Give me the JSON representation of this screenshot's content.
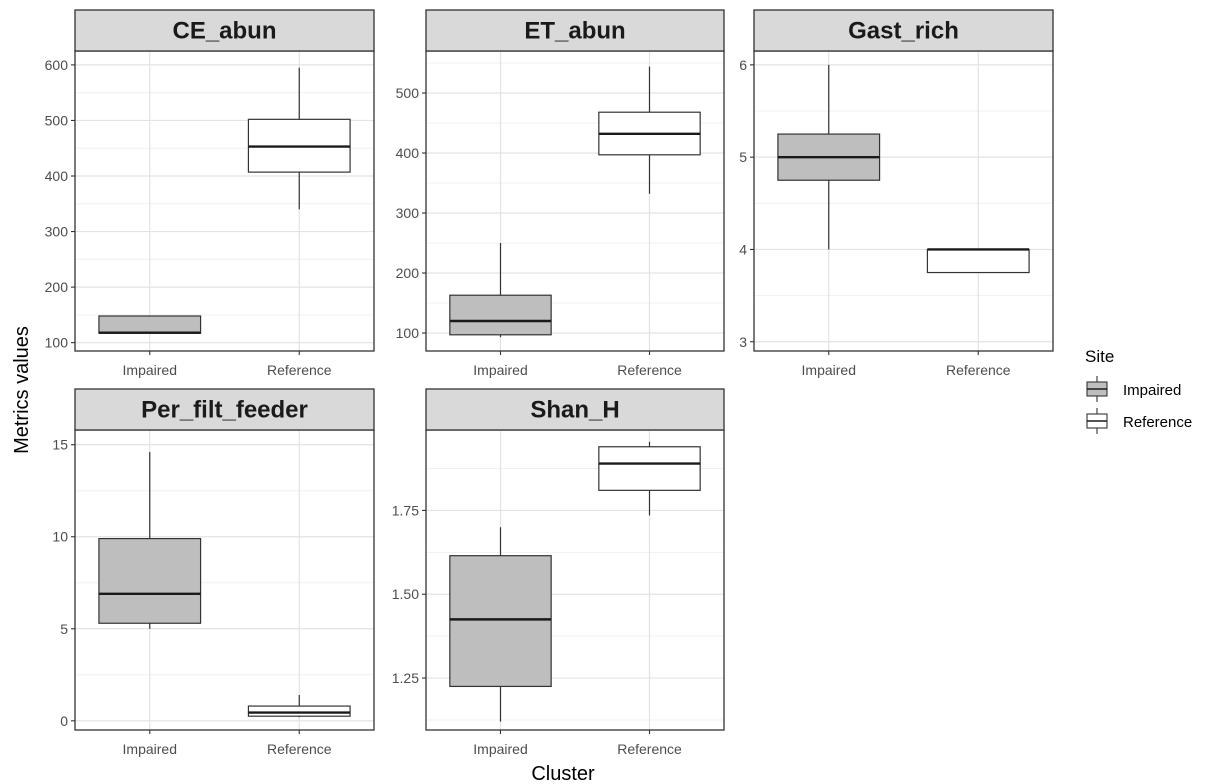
{
  "chart_data": {
    "type": "boxplot",
    "xlabel": "Cluster",
    "ylabel": "Metrics values",
    "categories": [
      "Impaired",
      "Reference"
    ],
    "legend": {
      "title": "Site",
      "position": "right",
      "entries": [
        {
          "label": "Impaired",
          "fill": "#bebebe"
        },
        {
          "label": "Reference",
          "fill": "#ffffff"
        }
      ]
    },
    "grid": true,
    "panels": [
      {
        "name": "CE_abun",
        "ylim": [
          85,
          625
        ],
        "yticks": [
          100,
          200,
          300,
          400,
          500,
          600
        ],
        "boxes": [
          {
            "category": "Impaired",
            "site": "Impaired",
            "whisker_low": 117,
            "q1": 117,
            "median": 118,
            "q3": 148,
            "whisker_high": 148
          },
          {
            "category": "Reference",
            "site": "Reference",
            "whisker_low": 340,
            "q1": 407,
            "median": 453,
            "q3": 502,
            "whisker_high": 595
          }
        ]
      },
      {
        "name": "ET_abun",
        "ylim": [
          70,
          570
        ],
        "yticks": [
          100,
          200,
          300,
          400,
          500
        ],
        "boxes": [
          {
            "category": "Impaired",
            "site": "Impaired",
            "whisker_low": 93,
            "q1": 97,
            "median": 120,
            "q3": 163,
            "whisker_high": 250
          },
          {
            "category": "Reference",
            "site": "Reference",
            "whisker_low": 332,
            "q1": 397,
            "median": 432,
            "q3": 468,
            "whisker_high": 544
          }
        ]
      },
      {
        "name": "Gast_rich",
        "ylim": [
          2.9,
          6.15
        ],
        "yticks": [
          3,
          4,
          5,
          6
        ],
        "boxes": [
          {
            "category": "Impaired",
            "site": "Impaired",
            "whisker_low": 4,
            "q1": 4.75,
            "median": 5,
            "q3": 5.25,
            "whisker_high": 6
          },
          {
            "category": "Reference",
            "site": "Reference",
            "whisker_low": 3.75,
            "q1": 3.75,
            "median": 4,
            "q3": 4,
            "whisker_high": 4
          }
        ]
      },
      {
        "name": "Per_filt_feeder",
        "ylim": [
          -0.5,
          15.8
        ],
        "yticks": [
          0,
          5,
          10,
          15
        ],
        "boxes": [
          {
            "category": "Impaired",
            "site": "Impaired",
            "whisker_low": 5,
            "q1": 5.3,
            "median": 6.9,
            "q3": 9.9,
            "whisker_high": 14.6
          },
          {
            "category": "Reference",
            "site": "Reference",
            "whisker_low": 0.2,
            "q1": 0.25,
            "median": 0.45,
            "q3": 0.8,
            "whisker_high": 1.4
          }
        ]
      },
      {
        "name": "Shan_H",
        "ylim": [
          1.095,
          1.99
        ],
        "yticks": [
          1.25,
          1.5,
          1.75
        ],
        "ytick_labels": [
          "1.25",
          "1.50",
          "1.75"
        ],
        "boxes": [
          {
            "category": "Impaired",
            "site": "Impaired",
            "whisker_low": 1.12,
            "q1": 1.225,
            "median": 1.425,
            "q3": 1.615,
            "whisker_high": 1.7
          },
          {
            "category": "Reference",
            "site": "Reference",
            "whisker_low": 1.735,
            "q1": 1.81,
            "median": 1.89,
            "q3": 1.94,
            "whisker_high": 1.955
          }
        ]
      }
    ]
  }
}
